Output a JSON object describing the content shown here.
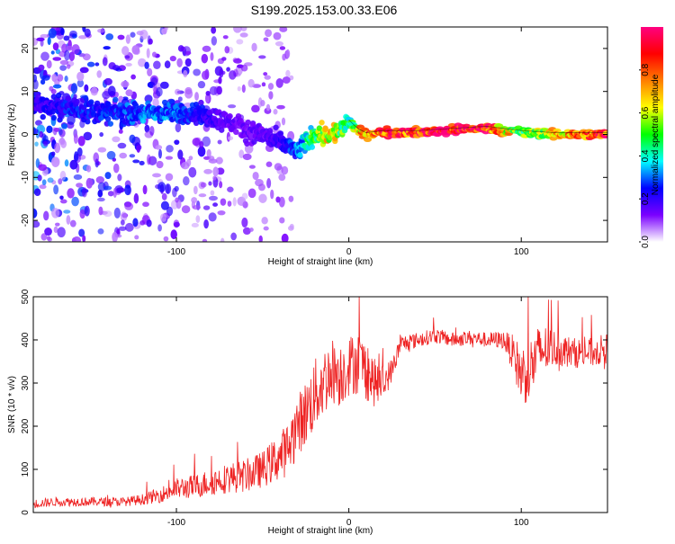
{
  "chart_data": [
    {
      "type": "heatmap",
      "title": "S199.2025.153.00.33.E06",
      "xlabel": "Height of straight line (km)",
      "ylabel": "Frequency (Hz)",
      "xlim": [
        -183,
        150
      ],
      "ylim": [
        -25,
        25
      ],
      "xticks": [
        -100,
        0,
        100
      ],
      "yticks": [
        -20,
        -10,
        0,
        10,
        20
      ],
      "colorbar": {
        "label": "Normalized spectral amplitude",
        "range": [
          0,
          1
        ],
        "ticks": [
          "0.0",
          "0.2",
          "0.4",
          "0.6",
          "0.8"
        ],
        "colors": [
          "#ffffff",
          "#7a00ff",
          "#0000ff",
          "#00ffff",
          "#00ff00",
          "#ffff00",
          "#ff7f00",
          "#ff0000",
          "#ff0080"
        ]
      },
      "ridge": {
        "x": [
          -180,
          -160,
          -140,
          -120,
          -100,
          -90,
          -80,
          -70,
          -60,
          -50,
          -40,
          -30,
          -25,
          -20,
          -15,
          -10,
          -5,
          0,
          5,
          10,
          20,
          40,
          60,
          80,
          100,
          120,
          150
        ],
        "y": [
          7,
          6,
          5,
          5,
          5,
          5,
          4,
          3,
          1,
          0,
          -2,
          -4,
          -2,
          0,
          0,
          0,
          1,
          3,
          1,
          0,
          0.5,
          0.5,
          1,
          1.5,
          0.5,
          0,
          0
        ],
        "amplitude": [
          0.2,
          0.25,
          0.25,
          0.3,
          0.3,
          0.25,
          0.2,
          0.15,
          0.15,
          0.15,
          0.2,
          0.3,
          0.4,
          0.5,
          0.6,
          0.65,
          0.55,
          0.45,
          0.6,
          0.85,
          0.9,
          0.9,
          1.0,
          0.95,
          0.5,
          0.7,
          0.9
        ]
      }
    },
    {
      "type": "line",
      "xlabel": "Height of straight line (km)",
      "ylabel": "SNR (10 * v/v)",
      "xlim": [
        -183,
        150
      ],
      "ylim": [
        0,
        500
      ],
      "xticks": [
        -100,
        0,
        100
      ],
      "yticks": [
        0,
        100,
        200,
        300,
        400,
        500
      ],
      "color": "#ee2222",
      "series": [
        {
          "x": [
            -183,
            -170,
            -160,
            -150,
            -140,
            -130,
            -120,
            -110,
            -100,
            -90,
            -80,
            -70,
            -60,
            -50,
            -40,
            -35,
            -30,
            -25,
            -20,
            -15,
            -10,
            -5,
            0,
            5,
            10,
            15,
            20,
            25,
            30,
            40,
            50,
            60,
            70,
            80,
            90,
            95,
            100,
            105,
            110,
            115,
            120,
            130,
            140,
            150
          ],
          "y": [
            20,
            25,
            25,
            25,
            25,
            25,
            30,
            40,
            55,
            60,
            70,
            80,
            85,
            100,
            130,
            150,
            200,
            230,
            270,
            300,
            330,
            320,
            340,
            350,
            330,
            300,
            300,
            330,
            390,
            400,
            410,
            400,
            405,
            400,
            400,
            370,
            320,
            330,
            370,
            380,
            380,
            370,
            370,
            380
          ],
          "noise": [
            15,
            15,
            15,
            15,
            15,
            15,
            18,
            25,
            35,
            40,
            45,
            50,
            55,
            60,
            80,
            90,
            100,
            110,
            120,
            120,
            110,
            110,
            100,
            110,
            100,
            80,
            60,
            40,
            30,
            25,
            25,
            25,
            25,
            25,
            30,
            60,
            100,
            110,
            90,
            80,
            60,
            50,
            50,
            50
          ]
        }
      ]
    }
  ]
}
